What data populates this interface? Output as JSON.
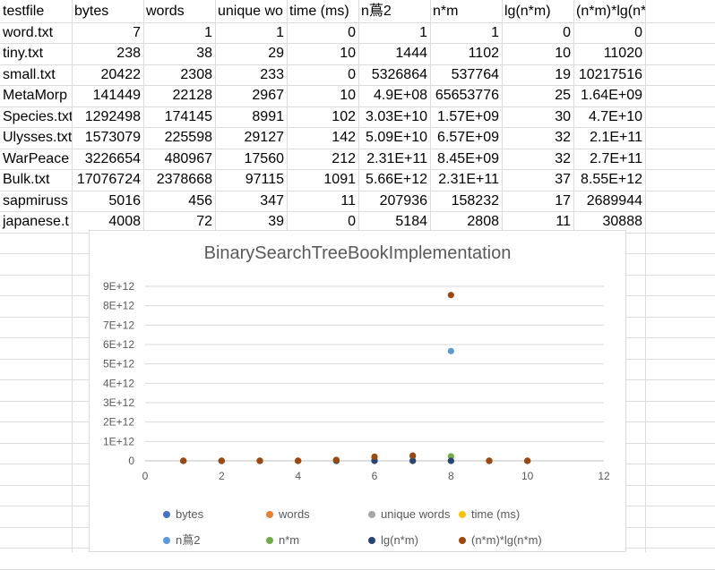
{
  "sheet": {
    "headers": [
      "testfile",
      "bytes",
      "words",
      "unique wo",
      "time (ms)",
      "n蔦2",
      "n*m",
      "lg(n*m)",
      "(n*m)*lg(n*m)"
    ],
    "rows": [
      [
        "word.txt",
        "7",
        "1",
        "1",
        "0",
        "1",
        "1",
        "0",
        "0"
      ],
      [
        "tiny.txt",
        "238",
        "38",
        "29",
        "10",
        "1444",
        "1102",
        "10",
        "11020"
      ],
      [
        "small.txt",
        "20422",
        "2308",
        "233",
        "0",
        "5326864",
        "537764",
        "19",
        "10217516"
      ],
      [
        "MetaMorp",
        "141449",
        "22128",
        "2967",
        "10",
        "4.9E+08",
        "65653776",
        "25",
        "1.64E+09"
      ],
      [
        "Species.txt",
        "1292498",
        "174145",
        "8991",
        "102",
        "3.03E+10",
        "1.57E+09",
        "30",
        "4.7E+10"
      ],
      [
        "Ulysses.txt",
        "1573079",
        "225598",
        "29127",
        "142",
        "5.09E+10",
        "6.57E+09",
        "32",
        "2.1E+11"
      ],
      [
        "WarPeace",
        "3226654",
        "480967",
        "17560",
        "212",
        "2.31E+11",
        "8.45E+09",
        "32",
        "2.7E+11"
      ],
      [
        "Bulk.txt",
        "17076724",
        "2378668",
        "97115",
        "1091",
        "5.66E+12",
        "2.31E+11",
        "37",
        "8.55E+12"
      ],
      [
        "sapmiruss",
        "5016",
        "456",
        "347",
        "11",
        "207936",
        "158232",
        "17",
        "2689944"
      ],
      [
        "japanese.t",
        "4008",
        "72",
        "39",
        "0",
        "5184",
        "2808",
        "11",
        "30888"
      ]
    ]
  },
  "chart_data": {
    "type": "scatter",
    "title": "BinarySearchTreeBookImplementation",
    "xlabel": "",
    "ylabel": "",
    "xlim": [
      0,
      12
    ],
    "ylim": [
      0,
      9000000000000.0
    ],
    "x_ticks": [
      "0",
      "2",
      "4",
      "6",
      "8",
      "10",
      "12"
    ],
    "y_ticks": [
      "0",
      "1E+12",
      "2E+12",
      "3E+12",
      "4E+12",
      "5E+12",
      "6E+12",
      "7E+12",
      "8E+12",
      "9E+12"
    ],
    "grid": "horizontal",
    "legend_position": "bottom",
    "x": [
      1,
      2,
      3,
      4,
      5,
      6,
      7,
      8,
      9,
      10
    ],
    "series": [
      {
        "name": "bytes",
        "color": "#4472c4",
        "values": [
          7,
          238,
          20422,
          141449,
          1292498,
          1573079,
          3226654,
          17076724,
          5016,
          4008
        ]
      },
      {
        "name": "words",
        "color": "#ed7d31",
        "values": [
          1,
          38,
          2308,
          22128,
          174145,
          225598,
          480967,
          2378668,
          456,
          72
        ]
      },
      {
        "name": "unique words",
        "color": "#a5a5a5",
        "values": [
          1,
          29,
          233,
          2967,
          8991,
          29127,
          17560,
          97115,
          347,
          39
        ]
      },
      {
        "name": "time (ms)",
        "color": "#ffc000",
        "values": [
          0,
          10,
          0,
          10,
          102,
          142,
          212,
          1091,
          11,
          0
        ]
      },
      {
        "name": "n蔦2",
        "color": "#5b9bd5",
        "values": [
          1,
          1444,
          5326864,
          490000000,
          30300000000,
          50900000000,
          231000000000,
          5660000000000,
          207936,
          5184
        ]
      },
      {
        "name": "n*m",
        "color": "#70ad47",
        "values": [
          1,
          1102,
          537764,
          65653776,
          1570000000,
          6570000000,
          8450000000,
          231000000000,
          158232,
          2808
        ]
      },
      {
        "name": "lg(n*m)",
        "color": "#264478",
        "values": [
          0,
          10,
          19,
          25,
          30,
          32,
          32,
          37,
          17,
          11
        ]
      },
      {
        "name": "(n*m)*lg(n*m)",
        "color": "#9e480e",
        "values": [
          0,
          11020,
          10217516,
          1640000000,
          47000000000,
          210000000000,
          270000000000,
          8550000000000,
          2689944,
          30888
        ]
      }
    ]
  }
}
